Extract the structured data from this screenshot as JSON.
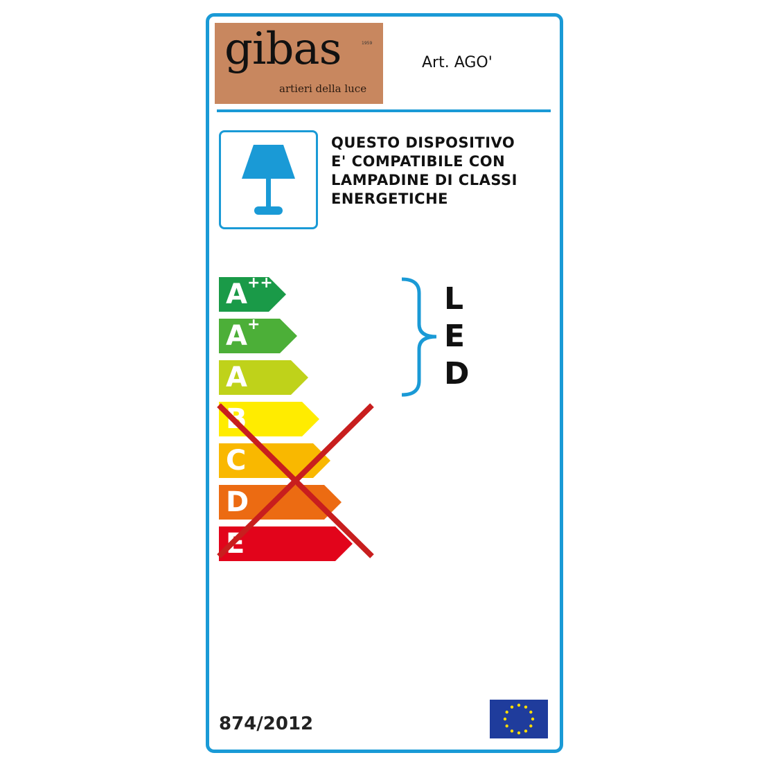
{
  "brand": {
    "name": "gibas",
    "tagline": "artieri della luce",
    "year": "1959",
    "bg_color": "#c8875f"
  },
  "article": "Art. AGO'",
  "description": [
    "QUESTO DISPOSITIVO",
    "E' COMPATIBILE CON",
    "LAMPADINE DI CLASSI",
    "ENERGETICHE"
  ],
  "classes": [
    {
      "label": "A",
      "sup": "++",
      "color": "#1a9a48",
      "crossed": false
    },
    {
      "label": "A",
      "sup": "+",
      "color": "#4caf38",
      "crossed": false
    },
    {
      "label": "A",
      "sup": "",
      "color": "#bfd21a",
      "crossed": false
    },
    {
      "label": "B",
      "sup": "",
      "color": "#ffec00",
      "crossed": true
    },
    {
      "label": "C",
      "sup": "",
      "color": "#f9b800",
      "crossed": true
    },
    {
      "label": "D",
      "sup": "",
      "color": "#ec6b12",
      "crossed": true
    },
    {
      "label": "E",
      "sup": "",
      "color": "#e2041b",
      "crossed": true
    }
  ],
  "led_letters": [
    "L",
    "E",
    "D"
  ],
  "regulation": "874/2012",
  "icons": {
    "lamp": "table-lamp-icon",
    "flag": "eu-flag-icon",
    "cross": "cross-out-mark",
    "brace": "curly-brace"
  },
  "accent_color": "#1a9ad6"
}
